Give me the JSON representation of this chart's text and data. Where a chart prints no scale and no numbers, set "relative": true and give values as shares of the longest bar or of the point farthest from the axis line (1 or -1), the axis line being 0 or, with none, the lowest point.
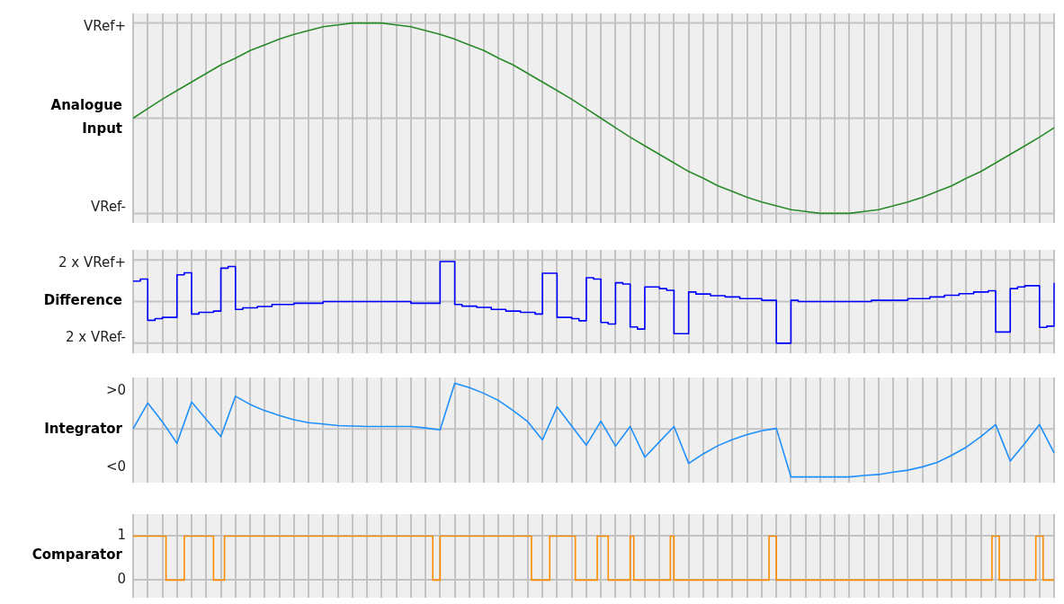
{
  "chart_data": [
    {
      "type": "line",
      "ylabel": "Analogue Input",
      "color": "#2a8a2a",
      "relative": true,
      "tick_labels": false,
      "grid": true,
      "annotations": [
        "VRef+",
        "VRef-"
      ],
      "categories": [
        null,
        null,
        null,
        null,
        null,
        null,
        null,
        null,
        null,
        null,
        null,
        null,
        null,
        null,
        null,
        null,
        null,
        null,
        null,
        null,
        null,
        null,
        null,
        null,
        null,
        null,
        null,
        null,
        null,
        null,
        null,
        null,
        null,
        null,
        null,
        null,
        null,
        null,
        null,
        null,
        null,
        null,
        null,
        null,
        null,
        null,
        null,
        null,
        null,
        null,
        null,
        null,
        null,
        null,
        null,
        null,
        null,
        null,
        null,
        null,
        null,
        null,
        null,
        null
      ],
      "values": [
        0,
        0.1,
        0.2,
        0.29,
        0.38,
        0.47,
        0.56,
        0.63,
        0.71,
        0.77,
        0.83,
        0.88,
        0.92,
        0.96,
        0.98,
        1.0,
        1.0,
        1.0,
        0.98,
        0.96,
        0.92,
        0.88,
        0.83,
        0.77,
        0.71,
        0.63,
        0.56,
        0.47,
        0.38,
        0.29,
        0.2,
        0.1,
        0,
        -0.1,
        -0.2,
        -0.29,
        -0.38,
        -0.47,
        -0.56,
        -0.63,
        -0.71,
        -0.77,
        -0.83,
        -0.88,
        -0.92,
        -0.96,
        -0.98,
        -1.0,
        -1.0,
        -1.0,
        -0.98,
        -0.96,
        -0.92,
        -0.88,
        -0.83,
        -0.77,
        -0.71,
        -0.63,
        -0.56,
        -0.47,
        -0.38,
        -0.29,
        -0.2,
        -0.1
      ]
    },
    {
      "type": "step",
      "ylabel": "Difference",
      "color": "#0000ff",
      "relative": true,
      "tick_labels": false,
      "grid": true,
      "annotations": [
        "2 x VRef+",
        "2 x VRef-"
      ],
      "categories": [
        null,
        null,
        null,
        null,
        null,
        null,
        null,
        null,
        null,
        null,
        null,
        null,
        null,
        null,
        null,
        null,
        null,
        null,
        null,
        null,
        null,
        null,
        null,
        null,
        null,
        null,
        null,
        null,
        null,
        null,
        null,
        null,
        null,
        null,
        null,
        null,
        null,
        null,
        null,
        null,
        null,
        null,
        null,
        null,
        null,
        null,
        null,
        null,
        null,
        null,
        null,
        null,
        null,
        null,
        null,
        null,
        null,
        null,
        null,
        null,
        null,
        null,
        null,
        null,
        null,
        null,
        null,
        null,
        null,
        null,
        null,
        null,
        null,
        null,
        null,
        null,
        null,
        null,
        null,
        null,
        null,
        null,
        null,
        null,
        null,
        null,
        null,
        null,
        null,
        null,
        null,
        null,
        null,
        null,
        null,
        null,
        null,
        null,
        null,
        null,
        null,
        null,
        null,
        null,
        null,
        null,
        null,
        null,
        null,
        null,
        null,
        null,
        null,
        null,
        null,
        null,
        null,
        null,
        null,
        null,
        null,
        null,
        null,
        null,
        null,
        null,
        null
      ],
      "values": [
        0.49,
        0.54,
        -0.45,
        -0.41,
        -0.38,
        -0.38,
        0.64,
        0.69,
        -0.3,
        -0.26,
        -0.26,
        -0.23,
        0.8,
        0.84,
        -0.19,
        -0.15,
        -0.15,
        -0.12,
        -0.12,
        -0.07,
        -0.07,
        -0.07,
        -0.04,
        -0.04,
        -0.04,
        -0.04,
        0,
        0,
        0,
        0,
        0,
        0,
        0,
        0,
        0,
        0,
        0,
        0,
        -0.04,
        -0.04,
        -0.04,
        -0.04,
        0.96,
        0.96,
        -0.07,
        -0.11,
        -0.11,
        -0.14,
        -0.14,
        -0.19,
        -0.19,
        -0.23,
        -0.23,
        -0.26,
        -0.26,
        -0.3,
        0.68,
        0.68,
        -0.38,
        -0.38,
        -0.41,
        -0.46,
        0.57,
        0.54,
        -0.5,
        -0.54,
        0.45,
        0.42,
        -0.61,
        -0.66,
        0.35,
        0.35,
        0.31,
        0.27,
        -0.77,
        -0.77,
        0.23,
        0.18,
        0.18,
        0.14,
        0.14,
        0.11,
        0.11,
        0.07,
        0.07,
        0.07,
        0.03,
        0.03,
        -1,
        -1,
        0.03,
        0,
        0,
        0,
        0,
        0,
        0,
        0,
        0,
        0,
        0,
        0.03,
        0.03,
        0.03,
        0.03,
        0.03,
        0.07,
        0.07,
        0.07,
        0.11,
        0.11,
        0.15,
        0.15,
        0.19,
        0.19,
        0.23,
        0.23,
        0.26,
        -0.73,
        -0.73,
        0.31,
        0.35,
        0.38,
        0.38,
        -0.62,
        -0.59,
        0.45
      ]
    },
    {
      "type": "line",
      "ylabel": "Integrator",
      "color": "#1e8fff",
      "relative": true,
      "tick_labels": false,
      "grid": "x",
      "annotations": [
        ">0",
        "<0"
      ],
      "categories": [
        null,
        null,
        null,
        null,
        null,
        null,
        null,
        null,
        null,
        null,
        null,
        null,
        null,
        null,
        null,
        null,
        null,
        null,
        null,
        null,
        null,
        null,
        null,
        null,
        null,
        null,
        null,
        null,
        null,
        null,
        null,
        null,
        null,
        null,
        null,
        null,
        null,
        null,
        null,
        null,
        null,
        null,
        null,
        null,
        null,
        null,
        null,
        null,
        null,
        null,
        null,
        null,
        null,
        null,
        null,
        null,
        null,
        null,
        null,
        null,
        null,
        null,
        null,
        null
      ],
      "values": [
        0,
        0.54,
        0.15,
        -0.3,
        0.56,
        0.2,
        -0.16,
        0.68,
        0.51,
        0.38,
        0.28,
        0.19,
        0.13,
        0.1,
        0.07,
        0.06,
        0.05,
        0.05,
        0.05,
        0.05,
        0.02,
        -0.02,
        0.95,
        0.86,
        0.74,
        0.59,
        0.38,
        0.15,
        -0.23,
        0.46,
        0.06,
        -0.34,
        0.16,
        -0.36,
        0.05,
        -0.59,
        -0.27,
        0.05,
        -0.72,
        -0.52,
        -0.35,
        -0.22,
        -0.12,
        -0.04,
        0.01,
        -1,
        -1,
        -1,
        -1,
        -1,
        -0.97,
        -0.95,
        -0.9,
        -0.86,
        -0.79,
        -0.7,
        -0.55,
        -0.38,
        -0.16,
        0.09,
        -0.67,
        -0.3,
        0.09,
        -0.5
      ]
    },
    {
      "type": "step",
      "ylabel": "Comparator",
      "color": "#ff8c00",
      "tick_labels": "y",
      "grid": true,
      "categories": [
        null,
        null,
        null,
        null,
        null,
        null,
        null,
        null,
        null,
        null,
        null,
        null,
        null,
        null,
        null,
        null,
        null,
        null,
        null,
        null,
        null,
        null,
        null,
        null,
        null,
        null,
        null,
        null,
        null,
        null,
        null,
        null,
        null,
        null,
        null,
        null,
        null,
        null,
        null,
        null,
        null,
        null,
        null,
        null,
        null,
        null,
        null,
        null,
        null,
        null,
        null,
        null,
        null,
        null,
        null,
        null,
        null,
        null,
        null,
        null,
        null,
        null,
        null,
        null,
        null,
        null,
        null,
        null,
        null,
        null,
        null,
        null,
        null,
        null,
        null,
        null,
        null,
        null,
        null,
        null,
        null,
        null,
        null,
        null,
        null,
        null,
        null,
        null,
        null,
        null,
        null,
        null,
        null,
        null,
        null,
        null,
        null,
        null,
        null,
        null,
        null,
        null,
        null,
        null,
        null,
        null,
        null,
        null,
        null,
        null,
        null,
        null,
        null,
        null,
        null,
        null,
        null,
        null,
        null,
        null,
        null,
        null,
        null,
        null,
        null,
        null,
        null,
        null,
        null,
        null,
        null,
        null,
        null,
        null,
        null,
        null,
        null,
        null,
        null,
        null,
        null,
        null,
        null,
        null,
        null,
        null,
        null,
        null,
        null,
        null,
        null,
        null,
        null,
        null,
        null,
        null,
        null,
        null,
        null,
        null,
        null,
        null,
        null,
        null,
        null,
        null,
        null,
        null,
        null,
        null,
        null,
        null,
        null,
        null,
        null,
        null,
        null,
        null,
        null,
        null,
        null,
        null,
        null,
        null,
        null,
        null,
        null,
        null,
        null,
        null,
        null,
        null,
        null,
        null,
        null,
        null,
        null,
        null,
        null,
        null,
        null,
        null,
        null,
        null,
        null,
        null,
        null,
        null,
        null,
        null,
        null,
        null,
        null,
        null,
        null,
        null,
        null,
        null,
        null,
        null,
        null,
        null,
        null,
        null,
        null,
        null,
        null,
        null,
        null,
        null,
        null,
        null,
        null,
        null,
        null,
        null,
        null,
        null,
        null,
        null,
        null,
        null,
        null,
        null,
        null,
        null,
        null,
        null,
        null,
        null,
        null,
        null,
        null
      ],
      "values": [
        1,
        1,
        1,
        1,
        1,
        1,
        1,
        1,
        1,
        0,
        0,
        0,
        0,
        0,
        1,
        1,
        1,
        1,
        1,
        1,
        1,
        1,
        0,
        0,
        0,
        1,
        1,
        1,
        1,
        1,
        1,
        1,
        1,
        1,
        1,
        1,
        1,
        1,
        1,
        1,
        1,
        1,
        1,
        1,
        1,
        1,
        1,
        1,
        1,
        1,
        1,
        1,
        1,
        1,
        1,
        1,
        1,
        1,
        1,
        1,
        1,
        1,
        1,
        1,
        1,
        1,
        1,
        1,
        1,
        1,
        1,
        1,
        1,
        1,
        1,
        1,
        1,
        1,
        1,
        1,
        1,
        1,
        0,
        0,
        1,
        1,
        1,
        1,
        1,
        1,
        1,
        1,
        1,
        1,
        1,
        1,
        1,
        1,
        1,
        1,
        1,
        1,
        1,
        1,
        1,
        1,
        1,
        1,
        1,
        0,
        0,
        0,
        0,
        0,
        1,
        1,
        1,
        1,
        1,
        1,
        1,
        0,
        0,
        0,
        0,
        0,
        0,
        1,
        1,
        1,
        0,
        0,
        0,
        0,
        0,
        0,
        1,
        0,
        0,
        0,
        0,
        0,
        0,
        0,
        0,
        0,
        0,
        1,
        0,
        0,
        0,
        0,
        0,
        0,
        0,
        0,
        0,
        0,
        0,
        0,
        0,
        0,
        0,
        0,
        0,
        0,
        0,
        0,
        0,
        0,
        0,
        0,
        0,
        0,
        1,
        1,
        0,
        0,
        0,
        0,
        0,
        0,
        0,
        0,
        0,
        0,
        0,
        0,
        0,
        0,
        0,
        0,
        0,
        0,
        0,
        0,
        0,
        0,
        0,
        0,
        0,
        0,
        0,
        0,
        0,
        0,
        0,
        0,
        0,
        0,
        0,
        0,
        0,
        0,
        0,
        0,
        0,
        0,
        0,
        0,
        0,
        0,
        0,
        0,
        0,
        0,
        0,
        0,
        0,
        0,
        0,
        0,
        0,
        0,
        0,
        1,
        1,
        0,
        0,
        0,
        0,
        0,
        0,
        0,
        0,
        0,
        0,
        1,
        1,
        0,
        0,
        0,
        0
      ],
      "ylim": [
        -0.4,
        1.5
      ],
      "yticks": [
        1,
        0
      ]
    }
  ]
}
